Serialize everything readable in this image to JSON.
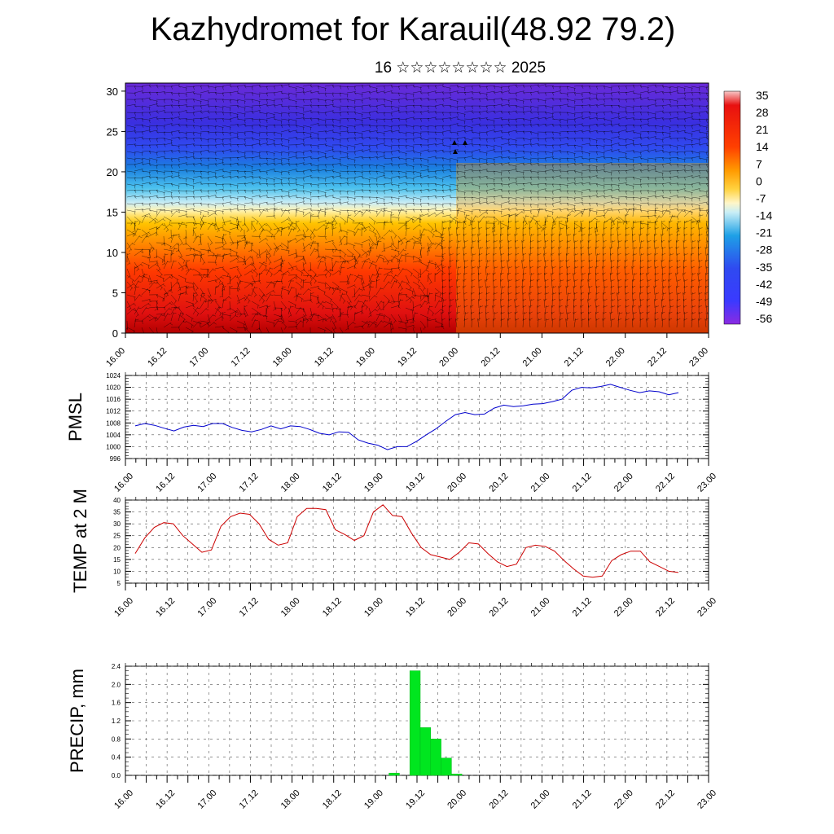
{
  "header": {
    "title": "Kazhydromet for Karauil(48.92 79.2)",
    "subtitle": "16 ☆☆☆☆☆☆☆☆ 2025"
  },
  "time_ticks": [
    "16.00",
    "16.12",
    "17.00",
    "17.12",
    "18.00",
    "18.12",
    "19.00",
    "19.12",
    "20.00",
    "20.12",
    "21.00",
    "21.12",
    "22.00",
    "22.12",
    "23.00"
  ],
  "chart_data": [
    {
      "type": "heatmap",
      "title": "",
      "xlabel": "",
      "ylabel": "",
      "x_ticks": [
        "16.00",
        "16.12",
        "17.00",
        "17.12",
        "18.00",
        "18.12",
        "19.00",
        "19.12",
        "20.00",
        "20.12",
        "21.00",
        "21.12",
        "22.00",
        "22.12",
        "23.00"
      ],
      "y_ticks": [
        0,
        5,
        10,
        15,
        20,
        25,
        30
      ],
      "ylim": [
        0,
        31
      ],
      "colorbar": {
        "labels": [
          "35",
          "28",
          "21",
          "14",
          "7",
          "0",
          "-7",
          "-14",
          "-21",
          "-28",
          "-35",
          "-42",
          "-49",
          "-56"
        ],
        "range": [
          -56,
          35
        ],
        "colors": [
          "#f7c7c7",
          "#e60000",
          "#ff4000",
          "#ffb300",
          "#fff0a0",
          "#ade8f0",
          "#1ea0e6",
          "#3a3aff",
          "#8b2be2"
        ]
      },
      "overlay": "wind barbs",
      "description_values": {
        "surface_level_range": [
          14,
          35
        ],
        "upper_level_range": [
          -56,
          -42
        ]
      }
    },
    {
      "type": "line",
      "ylabel": "PMSL",
      "ylim": [
        996,
        1024
      ],
      "y_ticks": [
        996,
        1000,
        1004,
        1008,
        1012,
        1016,
        1020,
        1024
      ],
      "x_ticks": [
        "16.00",
        "16.12",
        "17.00",
        "17.12",
        "18.00",
        "18.12",
        "19.00",
        "19.12",
        "20.00",
        "20.12",
        "21.00",
        "21.12",
        "22.00",
        "22.12",
        "23.00"
      ],
      "color": "#0000cc",
      "series": [
        {
          "values": [
            1007.0,
            1007.8,
            1007.2,
            1006.2,
            1005.3,
            1006.6,
            1007.2,
            1006.8,
            1007.8,
            1007.8,
            1006.5,
            1005.5,
            1005.0,
            1005.8,
            1007.0,
            1006.0,
            1007.0,
            1006.8,
            1005.8,
            1004.5,
            1004.0,
            1005.0,
            1004.8,
            1002.3,
            1001.2,
            1000.5,
            999.0,
            1000.0,
            1000.0,
            1001.8,
            1004.0,
            1006.0,
            1008.5,
            1010.8,
            1011.5,
            1010.8,
            1011.0,
            1013.0,
            1014.0,
            1013.5,
            1013.8,
            1014.3,
            1014.5,
            1015.2,
            1016.0,
            1019.0,
            1020.0,
            1019.8,
            1020.3,
            1021.0,
            1020.0,
            1019.0,
            1018.2,
            1018.8,
            1018.5,
            1017.5,
            1018.2
          ]
        }
      ]
    },
    {
      "type": "line",
      "ylabel": "TEMP at 2 M",
      "ylim": [
        5,
        40
      ],
      "y_ticks": [
        5,
        10,
        15,
        20,
        25,
        30,
        35,
        40
      ],
      "x_ticks": [
        "16.00",
        "16.12",
        "17.00",
        "17.12",
        "18.00",
        "18.12",
        "19.00",
        "19.12",
        "20.00",
        "20.12",
        "21.00",
        "21.12",
        "22.00",
        "22.12",
        "23.00"
      ],
      "color": "#cc0000",
      "series": [
        {
          "values": [
            17.5,
            24.0,
            28.5,
            30.5,
            30.0,
            25.0,
            21.5,
            18.0,
            19.0,
            29.0,
            33.0,
            34.5,
            34.0,
            30.0,
            23.5,
            21.0,
            22.0,
            33.0,
            36.5,
            36.5,
            36.0,
            27.5,
            25.5,
            23.0,
            25.0,
            35.0,
            38.0,
            33.5,
            33.0,
            26.0,
            20.0,
            17.0,
            16.0,
            15.0,
            18.0,
            22.0,
            21.5,
            17.5,
            14.0,
            12.0,
            13.0,
            20.0,
            21.0,
            20.5,
            18.5,
            14.5,
            11.0,
            8.0,
            7.5,
            8.0,
            14.5,
            17.0,
            18.5,
            18.5,
            14.0,
            12.0,
            10.0,
            9.5
          ]
        }
      ]
    },
    {
      "type": "bar",
      "ylabel": "PRECIP, mm",
      "ylim": [
        0,
        2.4
      ],
      "y_ticks": [
        "0.0",
        "0.4",
        "0.8",
        "1.2",
        "1.6",
        "2.0",
        "2.4"
      ],
      "x_ticks": [
        "16.00",
        "16.12",
        "17.00",
        "17.12",
        "18.00",
        "18.12",
        "19.00",
        "19.12",
        "20.00",
        "20.12",
        "21.00",
        "21.12",
        "22.00",
        "22.12",
        "23.00"
      ],
      "color": "#00e61f",
      "bars": [
        {
          "hour": 78,
          "value": 0.05
        },
        {
          "hour": 84,
          "value": 2.3
        },
        {
          "hour": 87,
          "value": 1.05
        },
        {
          "hour": 90,
          "value": 0.8
        },
        {
          "hour": 93,
          "value": 0.38
        },
        {
          "hour": 96,
          "value": 0.03
        }
      ]
    }
  ]
}
